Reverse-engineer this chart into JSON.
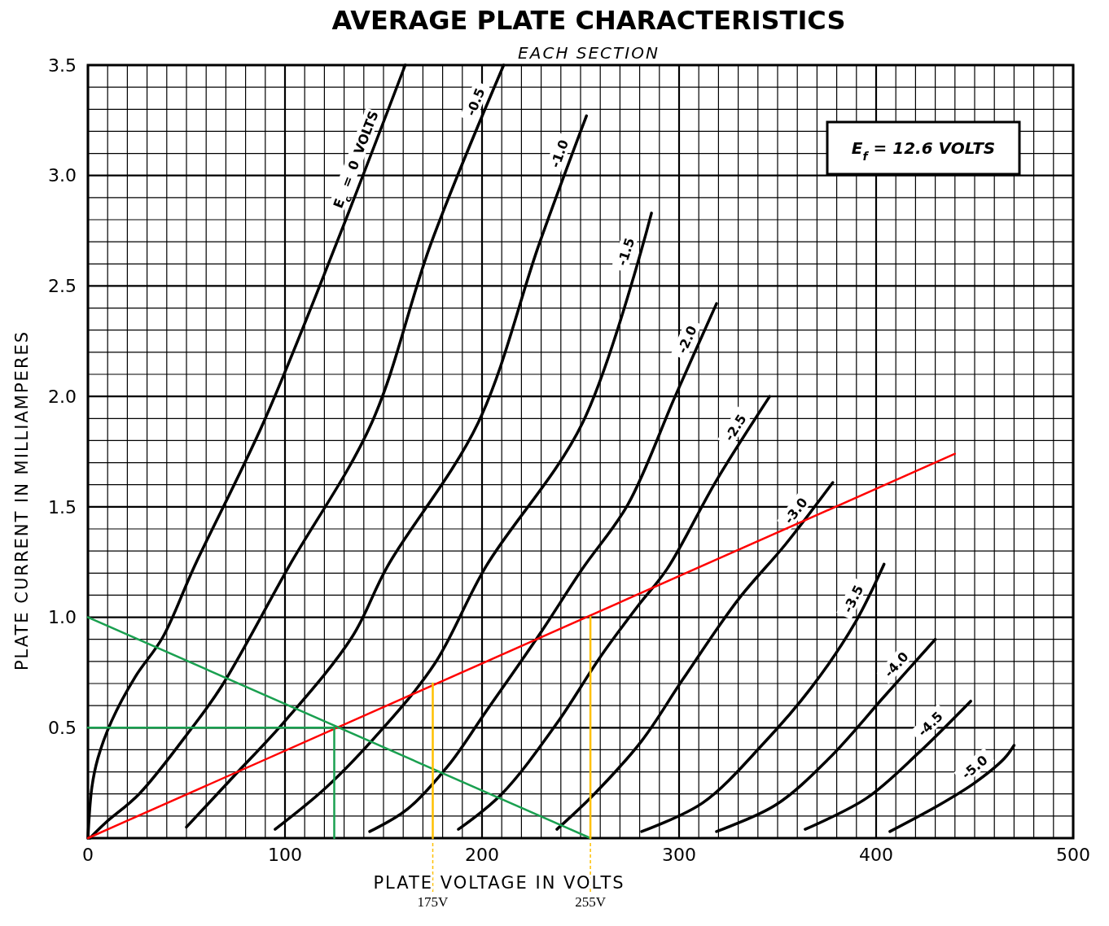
{
  "chart_data": {
    "type": "line",
    "title": "AVERAGE PLATE CHARACTERISTICS",
    "subtitle": "EACH SECTION",
    "xlabel": "PLATE VOLTAGE IN VOLTS",
    "ylabel": "PLATE CURRENT IN MILLIAMPERES",
    "xlim": [
      0,
      500
    ],
    "ylim": [
      0,
      3.5
    ],
    "xticks": [
      0,
      {
        "value": 10,
        "label": null
      },
      {
        "value": 20,
        "label": null
      },
      {
        "value": 30,
        "label": null
      },
      {
        "value": 40,
        "label": null
      },
      {
        "value": 50,
        "label": null
      },
      {
        "value": 60,
        "label": null
      },
      {
        "value": 70,
        "label": null
      },
      {
        "value": 80,
        "label": null
      },
      {
        "value": 90,
        "label": null
      },
      100,
      {
        "value": 110,
        "label": null
      },
      {
        "value": 120,
        "label": null
      },
      {
        "value": 130,
        "label": null
      },
      {
        "value": 140,
        "label": null
      },
      {
        "value": 150,
        "label": null
      },
      {
        "value": 160,
        "label": null
      },
      {
        "value": 170,
        "label": null
      },
      {
        "value": 180,
        "label": null
      },
      {
        "value": 190,
        "label": null
      },
      200,
      {
        "value": 210,
        "label": null
      },
      {
        "value": 220,
        "label": null
      },
      {
        "value": 230,
        "label": null
      },
      {
        "value": 240,
        "label": null
      },
      {
        "value": 250,
        "label": null
      },
      {
        "value": 260,
        "label": null
      },
      {
        "value": 270,
        "label": null
      },
      {
        "value": 280,
        "label": null
      },
      {
        "value": 290,
        "label": null
      },
      300,
      {
        "value": 310,
        "label": null
      },
      {
        "value": 320,
        "label": null
      },
      {
        "value": 330,
        "label": null
      },
      {
        "value": 340,
        "label": null
      },
      {
        "value": 350,
        "label": null
      },
      {
        "value": 360,
        "label": null
      },
      {
        "value": 370,
        "label": null
      },
      {
        "value": 380,
        "label": null
      },
      {
        "value": 390,
        "label": null
      },
      400,
      {
        "value": 410,
        "label": null
      },
      {
        "value": 420,
        "label": null
      },
      {
        "value": 430,
        "label": null
      },
      {
        "value": 440,
        "label": null
      },
      {
        "value": 450,
        "label": null
      },
      {
        "value": 460,
        "label": null
      },
      {
        "value": 470,
        "label": null
      },
      {
        "value": 480,
        "label": null
      },
      {
        "value": 490,
        "label": null
      },
      500
    ],
    "yticks": [
      {
        "value": 0,
        "label": null
      },
      {
        "value": 0.1,
        "label": null
      },
      {
        "value": 0.2,
        "label": null
      },
      {
        "value": 0.3,
        "label": null
      },
      {
        "value": 0.4,
        "label": null
      },
      0.5,
      {
        "value": 0.6,
        "label": null
      },
      {
        "value": 0.7,
        "label": null
      },
      {
        "value": 0.8,
        "label": null
      },
      {
        "value": 0.9,
        "label": null
      },
      {
        "value": 1,
        "label": "1.0"
      },
      {
        "value": 1.1,
        "label": null
      },
      {
        "value": 1.2,
        "label": null
      },
      {
        "value": 1.3,
        "label": null
      },
      {
        "value": 1.4,
        "label": null
      },
      1.5,
      {
        "value": 1.6,
        "label": null
      },
      {
        "value": 1.7,
        "label": null
      },
      {
        "value": 1.8,
        "label": null
      },
      {
        "value": 1.9,
        "label": null
      },
      {
        "value": 2,
        "label": "2.0"
      },
      {
        "value": 2.1,
        "label": null
      },
      {
        "value": 2.2,
        "label": null
      },
      {
        "value": 2.3,
        "label": null
      },
      {
        "value": 2.4,
        "label": null
      },
      2.5,
      {
        "value": 2.6,
        "label": null
      },
      {
        "value": 2.7,
        "label": null
      },
      {
        "value": 2.8,
        "label": null
      },
      {
        "value": 2.9,
        "label": null
      },
      {
        "value": 3,
        "label": "3.0"
      },
      {
        "value": 3.1,
        "label": null
      },
      {
        "value": 3.2,
        "label": null
      },
      {
        "value": 3.3,
        "label": null
      },
      {
        "value": 3.4,
        "label": null
      },
      3.5
    ],
    "grid": true,
    "annotations": [
      "E$_{f}$ = 12.6 VOLTS",
      {
        "text": "175V",
        "x": 175,
        "y": 0
      },
      {
        "text": "255V",
        "x": 255,
        "y": 0
      }
    ],
    "series": [
      {
        "name": "E$_{c}$ = 0 VOLTS",
        "color": "#000000",
        "x": [
          0,
          2,
          5,
          12,
          24,
          38,
          54,
          89,
          126,
          161
        ],
        "values": [
          0,
          0.23,
          0.36,
          0.53,
          0.73,
          0.91,
          1.23,
          1.88,
          2.69,
          3.5
        ]
      },
      {
        "name": "-0.5",
        "color": "#000000",
        "x": [
          1,
          9,
          26,
          52,
          68,
          102,
          144,
          174,
          211
        ],
        "values": [
          0,
          0.07,
          0.2,
          0.49,
          0.69,
          1.23,
          1.88,
          2.69,
          3.5
        ]
      },
      {
        "name": "-1.0",
        "color": "#000000",
        "x": [
          50,
          74,
          100,
          134,
          152,
          198,
          229,
          253
        ],
        "values": [
          0.05,
          0.28,
          0.53,
          0.91,
          1.23,
          1.88,
          2.69,
          3.27
        ]
      },
      {
        "name": "-1.5",
        "color": "#000000",
        "x": [
          95,
          121,
          148,
          176,
          202,
          251,
          286
        ],
        "values": [
          0.04,
          0.23,
          0.48,
          0.79,
          1.23,
          1.88,
          2.83
        ]
      },
      {
        "name": "-2.0",
        "color": "#000000",
        "x": [
          143,
          162,
          183,
          201,
          229,
          251,
          274,
          298,
          319
        ],
        "values": [
          0.03,
          0.13,
          0.33,
          0.56,
          0.92,
          1.22,
          1.51,
          2.0,
          2.42
        ]
      },
      {
        "name": "-2.5",
        "color": "#000000",
        "x": [
          188,
          210,
          238,
          260,
          279,
          294,
          319,
          346
        ],
        "values": [
          0.04,
          0.2,
          0.52,
          0.82,
          1.05,
          1.22,
          1.62,
          2.0
        ]
      },
      {
        "name": "-3.0",
        "color": "#000000",
        "x": [
          238,
          257,
          281,
          302,
          330,
          354,
          378
        ],
        "values": [
          0.04,
          0.2,
          0.44,
          0.72,
          1.08,
          1.33,
          1.61
        ]
      },
      {
        "name": "-3.5",
        "color": "#000000",
        "x": [
          281,
          312,
          343,
          367,
          389,
          404
        ],
        "values": [
          0.03,
          0.16,
          0.43,
          0.68,
          0.97,
          1.24
        ]
      },
      {
        "name": "-4.0",
        "color": "#000000",
        "x": [
          319,
          349,
          376,
          404,
          430
        ],
        "values": [
          0.03,
          0.15,
          0.36,
          0.64,
          0.9
        ]
      },
      {
        "name": "-4.5",
        "color": "#000000",
        "x": [
          364,
          395,
          422,
          448
        ],
        "values": [
          0.04,
          0.18,
          0.39,
          0.62
        ]
      },
      {
        "name": "-5.0",
        "color": "#000000",
        "x": [
          407,
          432,
          450,
          465,
          470
        ],
        "values": [
          0.03,
          0.15,
          0.25,
          0.36,
          0.42
        ]
      },
      {
        "color": "#ff0000",
        "x": [
          0,
          440
        ],
        "values": [
          0,
          1.74
        ]
      },
      {
        "color": "#1aa050",
        "x": [
          0,
          255
        ],
        "values": [
          1.0,
          0
        ]
      },
      {
        "color": "#1aa050",
        "x": [
          0,
          125
        ],
        "values": [
          0.5,
          0.5
        ]
      },
      {
        "color": "#1aa050",
        "x": [
          125,
          125
        ],
        "values": [
          0.5,
          0
        ]
      },
      {
        "color": "#ffc000",
        "x": [
          175,
          175
        ],
        "values": [
          0,
          0.7
        ]
      },
      {
        "color": "#ffc000",
        "x": [
          255,
          255
        ],
        "values": [
          0,
          1.0
        ]
      }
    ]
  }
}
